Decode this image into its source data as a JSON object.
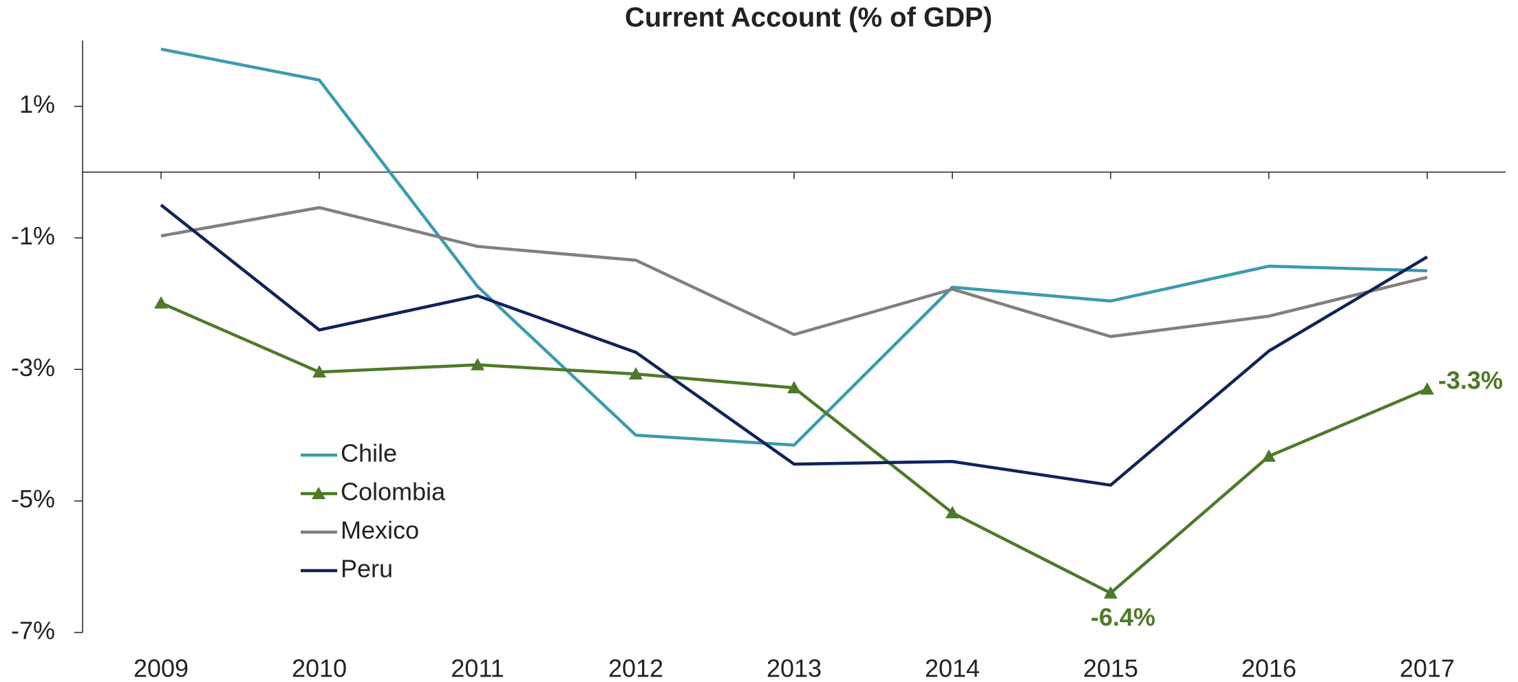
{
  "chart_data": {
    "type": "line",
    "title": "Current Account (% of GDP)",
    "categories": [
      "2009",
      "2010",
      "2011",
      "2012",
      "2013",
      "2014",
      "2015",
      "2016",
      "2017"
    ],
    "series": [
      {
        "name": "Chile",
        "color": "#3a9bb0",
        "values": [
          1.87,
          1.4,
          -1.74,
          -4.0,
          -4.15,
          -1.75,
          -1.96,
          -1.43,
          -1.5
        ]
      },
      {
        "name": "Colombia",
        "color": "#4e7a27",
        "marker": "triangle",
        "values": [
          -1.99,
          -3.04,
          -2.93,
          -3.07,
          -3.28,
          -5.18,
          -6.4,
          -4.32,
          -3.3
        ],
        "value_labels": [
          null,
          null,
          null,
          null,
          null,
          null,
          "-6.4%",
          null,
          "-3.3%"
        ]
      },
      {
        "name": "Mexico",
        "color": "#808080",
        "values": [
          -0.97,
          -0.54,
          -1.13,
          -1.34,
          -2.47,
          -1.78,
          -2.5,
          -2.19,
          -1.6
        ]
      },
      {
        "name": "Peru",
        "color": "#0e2359",
        "values": [
          -0.5,
          -2.4,
          -1.88,
          -2.74,
          -4.44,
          -4.4,
          -4.76,
          -2.72,
          -1.29
        ]
      }
    ],
    "ylim": [
      -7,
      2
    ],
    "yticks": [
      {
        "value": 1,
        "label": "1%"
      },
      {
        "value": -1,
        "label": "-1%"
      },
      {
        "value": -3,
        "label": "-3%"
      },
      {
        "value": -5,
        "label": "-5%"
      },
      {
        "value": -7,
        "label": "-7%"
      }
    ],
    "legend": "lower left"
  }
}
